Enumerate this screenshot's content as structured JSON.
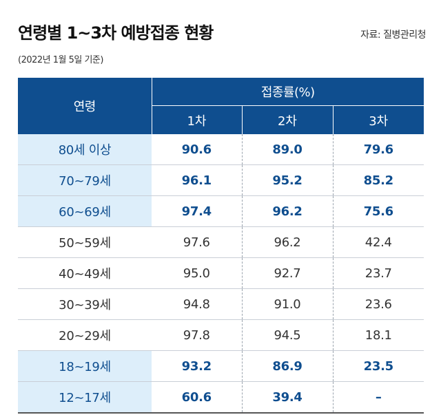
{
  "title": "연령별 1~3차 예방접종 현황",
  "source": "자료: 질병관리청",
  "subtitle": "(2022년 1월 5일 기준)",
  "table": {
    "age_header": "연령",
    "group_header": "접종률(%)",
    "dose_headers": [
      "1차",
      "2차",
      "3차"
    ],
    "rows": [
      {
        "age": "80세 이상",
        "d1": "90.6",
        "d2": "89.0",
        "d3": "79.6",
        "highlight": true
      },
      {
        "age": "70~79세",
        "d1": "96.1",
        "d2": "95.2",
        "d3": "85.2",
        "highlight": true
      },
      {
        "age": "60~69세",
        "d1": "97.4",
        "d2": "96.2",
        "d3": "75.6",
        "highlight": true
      },
      {
        "age": "50~59세",
        "d1": "97.6",
        "d2": "96.2",
        "d3": "42.4",
        "highlight": false
      },
      {
        "age": "40~49세",
        "d1": "95.0",
        "d2": "92.7",
        "d3": "23.7",
        "highlight": false
      },
      {
        "age": "30~39세",
        "d1": "94.8",
        "d2": "91.0",
        "d3": "23.6",
        "highlight": false
      },
      {
        "age": "20~29세",
        "d1": "97.8",
        "d2": "94.5",
        "d3": "18.1",
        "highlight": false
      },
      {
        "age": "18~19세",
        "d1": "93.2",
        "d2": "86.9",
        "d3": "23.5",
        "highlight": true
      },
      {
        "age": "12~17세",
        "d1": "60.6",
        "d2": "39.4",
        "d3": "–",
        "highlight": true
      }
    ]
  },
  "colors": {
    "header_bg": "#0f4e8f",
    "highlight_text": "#0f4e8f",
    "highlight_bg": "#ddeefa"
  }
}
